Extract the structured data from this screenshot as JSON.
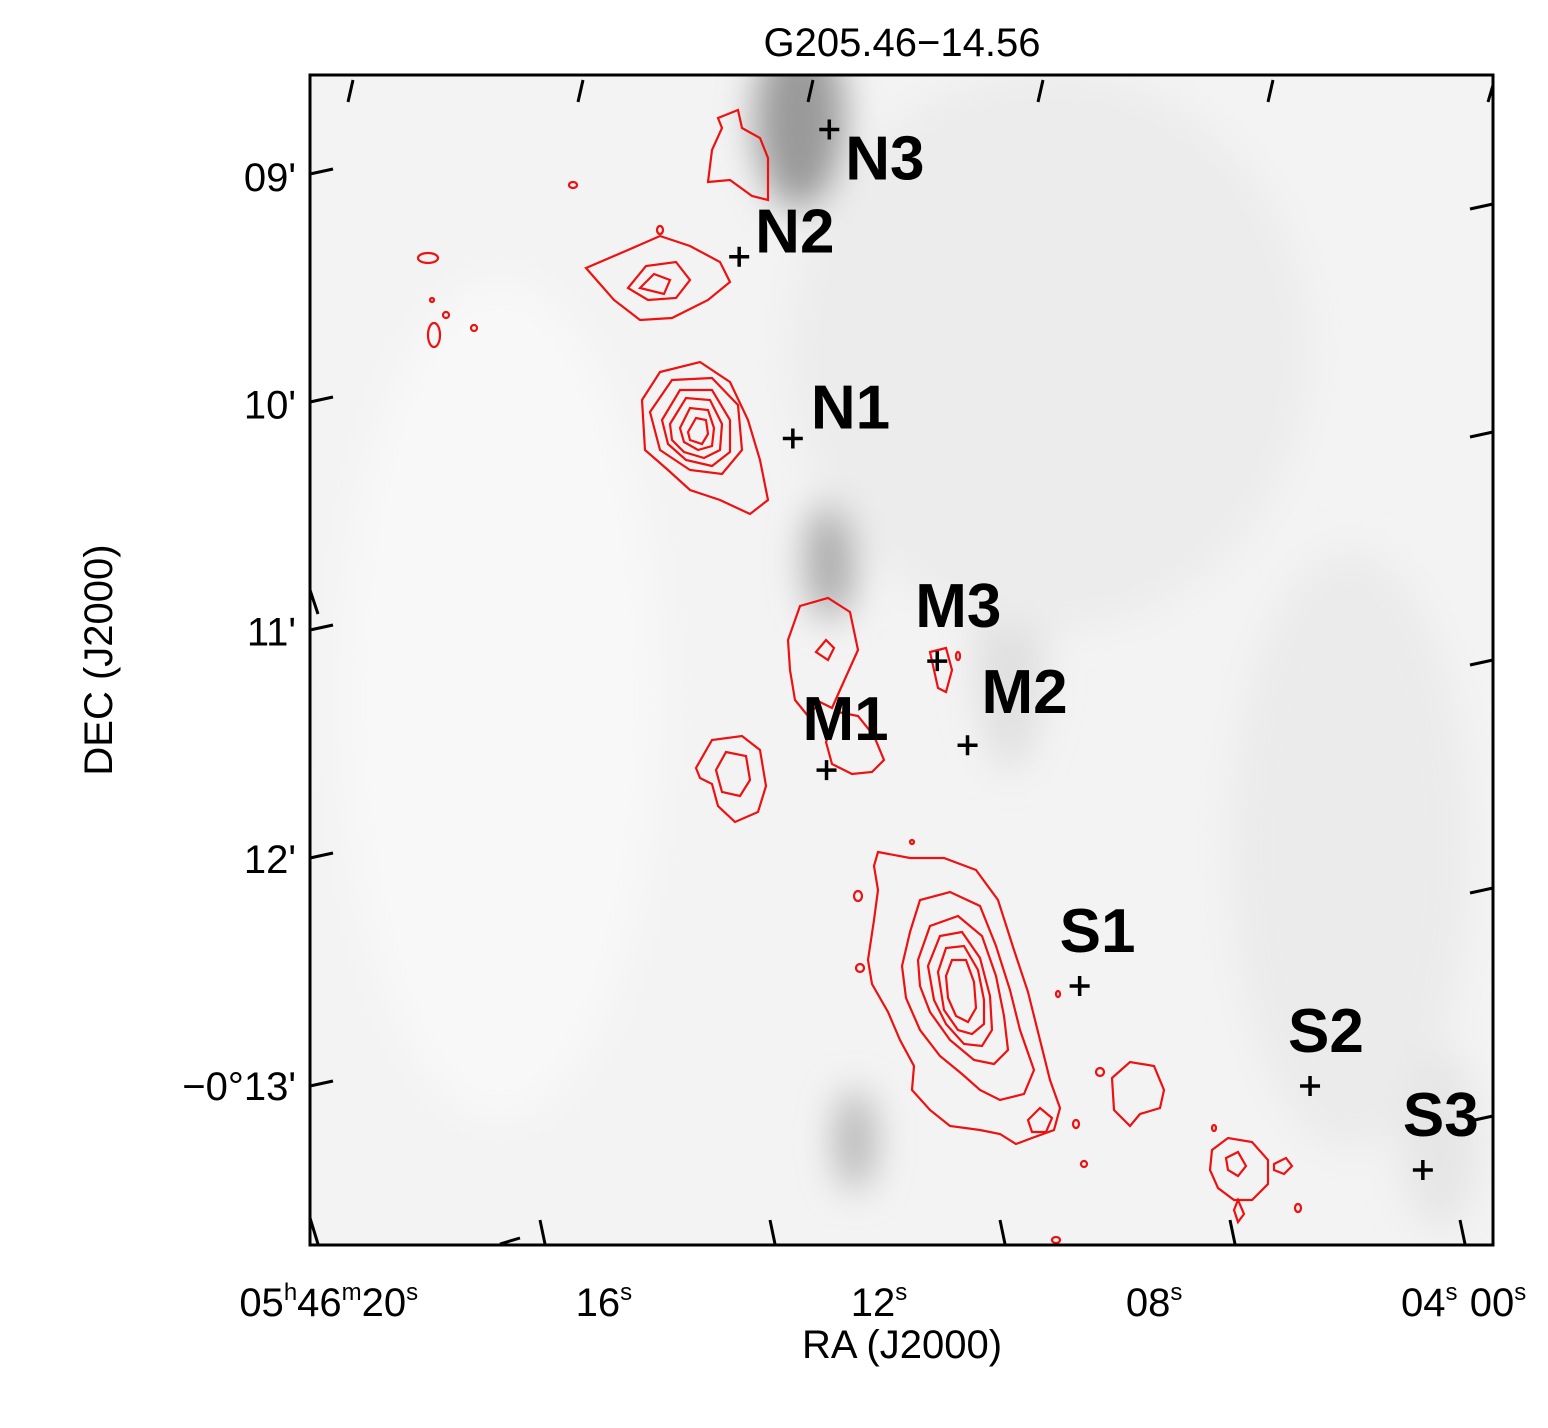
{
  "chart_data": {
    "type": "scatter",
    "title": "G205.46−14.56",
    "xlabel": "RA (J2000)",
    "ylabel": "DEC (J2000)",
    "x_unit": "s (05h46m + s)",
    "y_unit": "arcmin (−0° + arcmin)",
    "xlim": [
      20.2,
      3.0
    ],
    "ylim": [
      13.7,
      8.55
    ],
    "x_ticks": [
      {
        "value": 20,
        "label": "05h46m20s",
        "parts": [
          "05",
          "h",
          "46",
          "m",
          "20",
          "s"
        ]
      },
      {
        "value": 16,
        "label": "16s",
        "parts": [
          "16",
          "s"
        ]
      },
      {
        "value": 12,
        "label": "12s",
        "parts": [
          "12",
          "s"
        ]
      },
      {
        "value": 8,
        "label": "08s",
        "parts": [
          "08",
          "s"
        ]
      },
      {
        "value": 4,
        "label": "04s",
        "parts": [
          "04",
          "s"
        ]
      },
      {
        "value": 0,
        "label": "00s",
        "parts": [
          "00",
          "s"
        ]
      }
    ],
    "y_ticks": [
      {
        "value": 9,
        "label": "09'"
      },
      {
        "value": 10,
        "label": "10'"
      },
      {
        "value": 11,
        "label": "11'"
      },
      {
        "value": 12,
        "label": "12'"
      },
      {
        "value": 13,
        "label": "−0°13'"
      }
    ],
    "grid": false,
    "background": "grayscale image",
    "contour_color": "#ee1111",
    "marker": "plus",
    "sources": [
      {
        "name": "N3",
        "x": 12.65,
        "y": 8.79
      },
      {
        "name": "N2",
        "x": 13.96,
        "y": 9.35
      },
      {
        "name": "N1",
        "x": 13.18,
        "y": 10.15
      },
      {
        "name": "M3",
        "x": 11.08,
        "y": 11.13
      },
      {
        "name": "M2",
        "x": 10.64,
        "y": 11.5
      },
      {
        "name": "M1",
        "x": 12.69,
        "y": 11.61
      },
      {
        "name": "S1",
        "x": 9.01,
        "y": 12.56
      },
      {
        "name": "S2",
        "x": 5.66,
        "y": 13.0
      },
      {
        "name": "S3",
        "x": 4.02,
        "y": 13.37
      }
    ]
  }
}
